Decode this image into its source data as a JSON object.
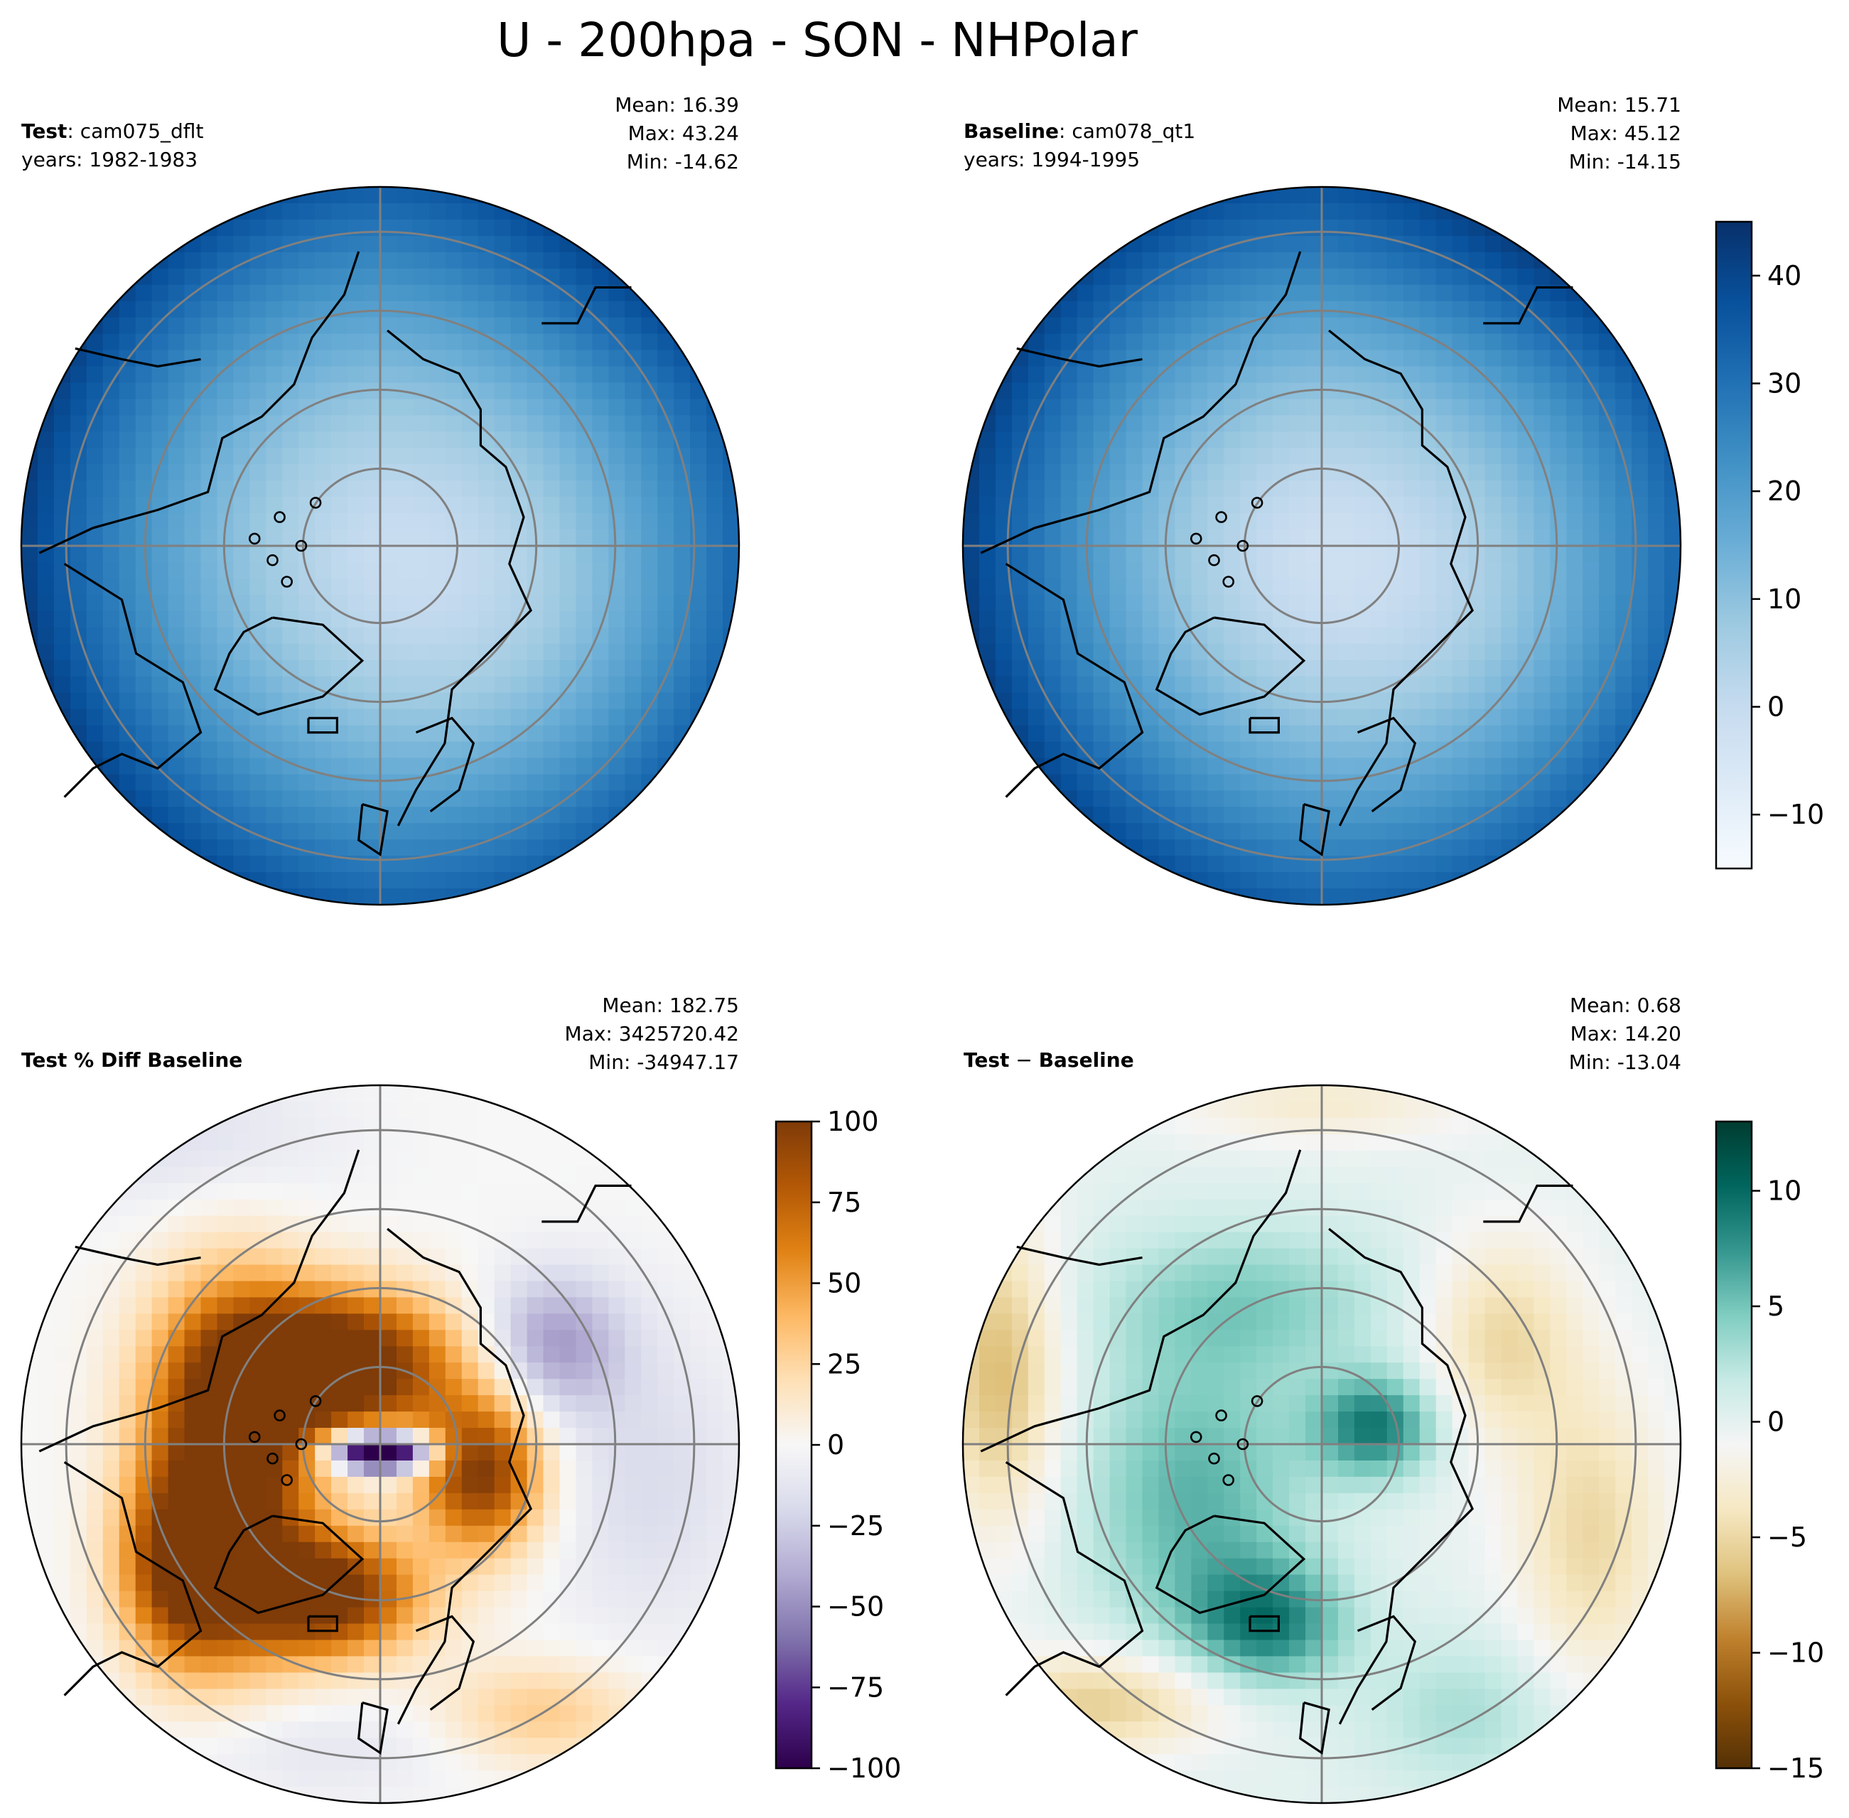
{
  "figure": {
    "title": "U - 200hpa - SON - NHPolar"
  },
  "panels": {
    "test": {
      "label_bold": "Test",
      "label_rest": ": cam075_dflt",
      "years": "years: 1982-1983",
      "mean": "Mean: 16.39",
      "max": "Max: 43.24",
      "min": "Min: -14.62"
    },
    "baseline": {
      "label_bold": "Baseline",
      "label_rest": ": cam078_qt1",
      "years": "years: 1994-1995",
      "mean": "Mean: 15.71",
      "max": "Max: 45.12",
      "min": "Min: -14.15"
    },
    "pctdiff": {
      "label_bold": "Test % Diff Baseline",
      "mean": "Mean: 182.75",
      "max": "Max: 3425720.42",
      "min": "Min: -34947.17"
    },
    "diff": {
      "label_bold": "Test",
      "label_minus": " − ",
      "label_rest": "Baseline",
      "mean": "Mean:  0.68",
      "max": "Max: 14.20",
      "min": "Min: -13.04"
    }
  },
  "colors": {
    "blues": [
      "#f7fbff",
      "#deebf7",
      "#c6dbef",
      "#9ecae1",
      "#6baed6",
      "#4292c6",
      "#2171b5",
      "#08519c",
      "#08306b"
    ],
    "puor": [
      "#2d004b",
      "#542788",
      "#8073ac",
      "#b2abd2",
      "#d8daeb",
      "#f7f7f7",
      "#fee0b6",
      "#fdb863",
      "#e08214",
      "#b35806",
      "#7f3b08"
    ],
    "brbg": [
      "#543005",
      "#8c510a",
      "#bf812d",
      "#dfc27d",
      "#f6e8c3",
      "#f5f5f5",
      "#c7eae5",
      "#80cdc1",
      "#35978f",
      "#01665e",
      "#003c30"
    ],
    "grid": "#808080",
    "coast": "#000000"
  },
  "chart_data": [
    {
      "type": "heatmap",
      "title": "Test: cam075_dflt",
      "projection": "north polar stereographic",
      "colormap": "Blues",
      "colorbar": {
        "range": [
          -15,
          45
        ],
        "ticks": [
          -10,
          0,
          10,
          20,
          30,
          40
        ],
        "shared_with": "Baseline"
      },
      "stats": {
        "mean": 16.39,
        "max": 43.24,
        "min": -14.62
      }
    },
    {
      "type": "heatmap",
      "title": "Baseline: cam078_qt1",
      "projection": "north polar stereographic",
      "colormap": "Blues",
      "colorbar": {
        "range": [
          -15,
          45
        ],
        "ticks": [
          -10,
          0,
          10,
          20,
          30,
          40
        ]
      },
      "stats": {
        "mean": 15.71,
        "max": 45.12,
        "min": -14.15
      }
    },
    {
      "type": "heatmap",
      "title": "Test % Diff Baseline",
      "projection": "north polar stereographic",
      "colormap": "PuOr_r",
      "colorbar": {
        "range": [
          -100,
          100
        ],
        "ticks": [
          -100,
          -75,
          -50,
          -25,
          0,
          25,
          50,
          75,
          100
        ]
      },
      "stats": {
        "mean": 182.75,
        "max": 3425720.42,
        "min": -34947.17
      }
    },
    {
      "type": "heatmap",
      "title": "Test − Baseline",
      "projection": "north polar stereographic",
      "colormap": "BrBG",
      "colorbar": {
        "range": [
          -15,
          13
        ],
        "ticks": [
          -15,
          -10,
          -5,
          0,
          5,
          10
        ]
      },
      "stats": {
        "mean": 0.68,
        "max": 14.2,
        "min": -13.04
      }
    }
  ]
}
